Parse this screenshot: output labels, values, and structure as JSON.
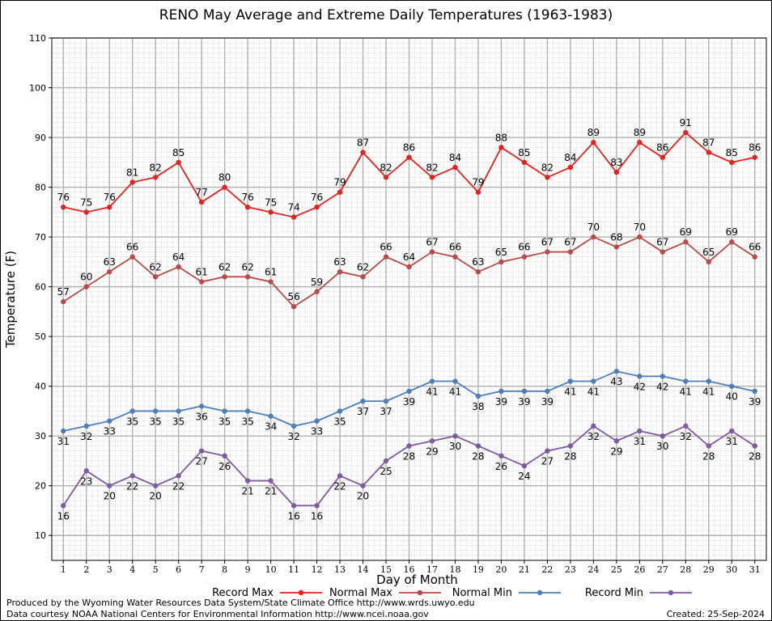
{
  "chart_data": {
    "type": "line",
    "title": "RENO May Average and Extreme Daily Temperatures (1963-1983)",
    "xlabel": "Day of Month",
    "ylabel": "Temperature (F)",
    "xlim": [
      1,
      31
    ],
    "ylim": [
      5,
      110
    ],
    "yticks": [
      10,
      20,
      30,
      40,
      50,
      60,
      70,
      80,
      90,
      100,
      110
    ],
    "x": [
      1,
      2,
      3,
      4,
      5,
      6,
      7,
      8,
      9,
      10,
      11,
      12,
      13,
      14,
      15,
      16,
      17,
      18,
      19,
      20,
      21,
      22,
      23,
      24,
      25,
      26,
      27,
      28,
      29,
      30,
      31
    ],
    "grid": true,
    "legend_position": "bottom",
    "series": [
      {
        "name": "Record Max",
        "color": "#e8211f",
        "label_position": "above",
        "values": [
          76,
          75,
          76,
          81,
          82,
          85,
          77,
          80,
          76,
          75,
          74,
          76,
          79,
          87,
          82,
          86,
          82,
          84,
          79,
          88,
          85,
          82,
          84,
          89,
          83,
          89,
          86,
          91,
          87,
          85,
          86
        ]
      },
      {
        "name": "Normal Max",
        "color": "#b84a4a",
        "label_position": "above",
        "values": [
          57,
          60,
          63,
          66,
          62,
          64,
          61,
          62,
          62,
          61,
          56,
          59,
          63,
          62,
          66,
          64,
          67,
          66,
          63,
          65,
          66,
          67,
          67,
          70,
          68,
          70,
          67,
          69,
          65,
          69,
          66
        ]
      },
      {
        "name": "Normal Min",
        "color": "#4a7fb8",
        "label_position": "below",
        "values": [
          31,
          32,
          33,
          35,
          35,
          35,
          36,
          35,
          35,
          34,
          32,
          33,
          35,
          37,
          37,
          39,
          41,
          41,
          38,
          39,
          39,
          39,
          41,
          41,
          43,
          42,
          42,
          41,
          41,
          40,
          39
        ]
      },
      {
        "name": "Record Min",
        "color": "#7f5a9e",
        "label_position": "below",
        "values": [
          16,
          23,
          20,
          22,
          20,
          22,
          27,
          26,
          21,
          21,
          16,
          16,
          22,
          20,
          25,
          28,
          29,
          30,
          28,
          26,
          24,
          27,
          28,
          32,
          29,
          31,
          30,
          32,
          28,
          31,
          28
        ]
      }
    ]
  },
  "footer": {
    "produced_by": "Produced by the Wyoming Water Resources Data System/State Climate Office http://www.wrds.uwyo.edu",
    "data_courtesy": "Data courtesy NOAA National Centers for Environmental Information http://www.ncei.noaa.gov",
    "created": "Created:  25-Sep-2024"
  }
}
